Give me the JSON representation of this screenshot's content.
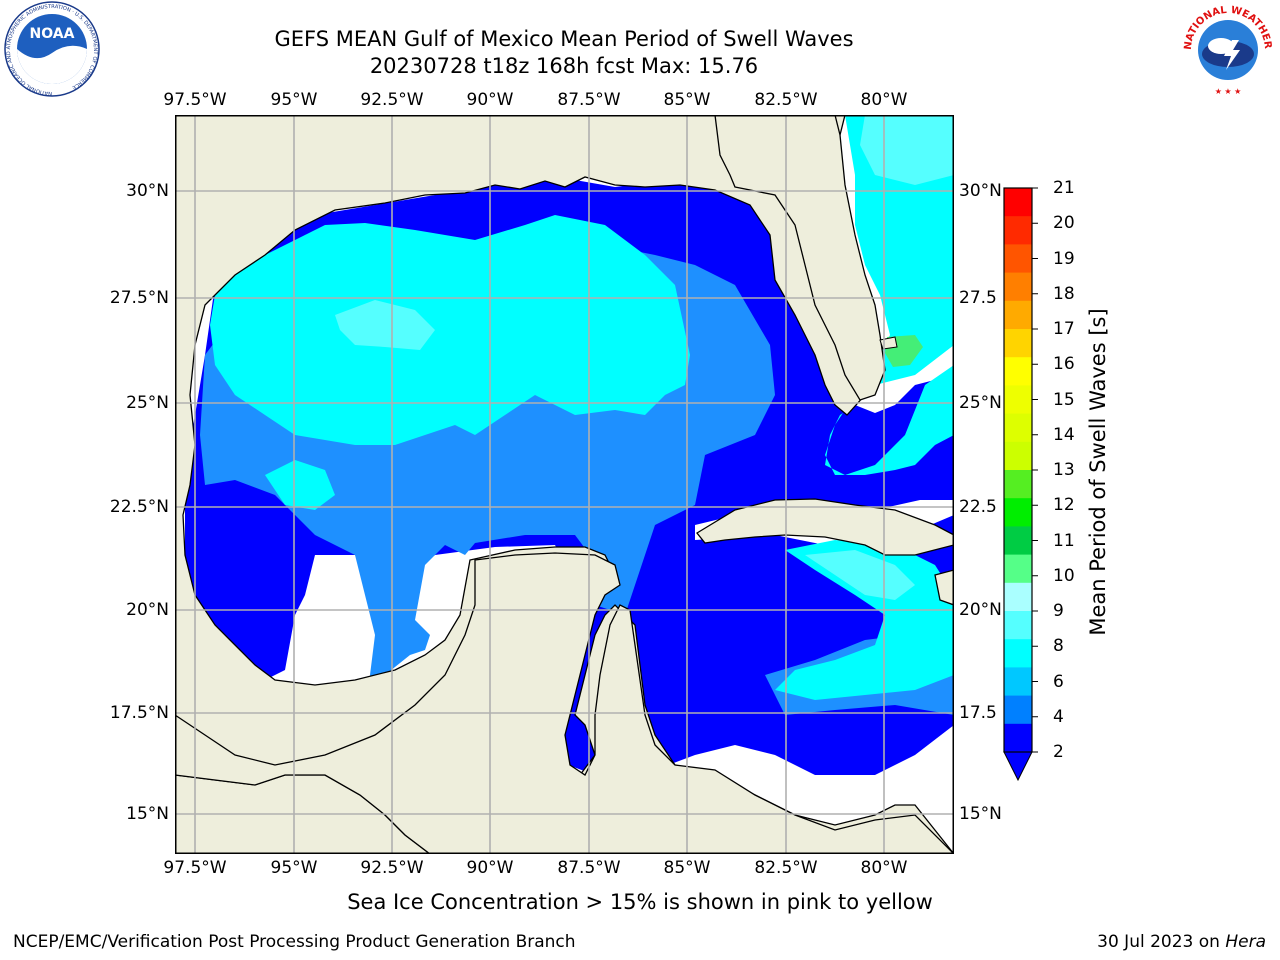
{
  "title": "GEFS MEAN Gulf of Mexico Mean Period of Swell Waves",
  "subtitle": "20230728 t18z 168h fcst   Max: 15.76",
  "axes": {
    "lon_top": [
      "97.5°W",
      "95°W",
      "92.5°W",
      "90°W",
      "87.5°W",
      "85°W",
      "82.5°W",
      "80°W"
    ],
    "lon_bottom": [
      "97.5°W",
      "95°W",
      "92.5°W",
      "90°W",
      "87.5°W",
      "85°W",
      "82.5°W",
      "80°W"
    ],
    "lat_left": [
      "30°N",
      "27.5°N",
      "25°N",
      "22.5°N",
      "20°N",
      "17.5°N",
      "15°N"
    ],
    "lat_right": [
      "30°N",
      "27.5",
      "25°N",
      "22.5",
      "20°N",
      "17.5",
      "15°N"
    ]
  },
  "colorbar": {
    "title": "Mean Period of Swell Waves [s]",
    "labels": [
      "21",
      "20",
      "19",
      "18",
      "17",
      "16",
      "15",
      "14",
      "13",
      "12",
      "11",
      "10",
      "9",
      "8",
      "6",
      "4",
      "2"
    ],
    "colors": [
      "#ff0000",
      "#ff2a00",
      "#ff5500",
      "#ff7f00",
      "#ffaa00",
      "#ffd400",
      "#ffff00",
      "#eeff00",
      "#ddff00",
      "#ccff00",
      "#55ee22",
      "#00ee00",
      "#00cc44",
      "#55ff88",
      "#aaffff",
      "#55ffff",
      "#00ffff",
      "#00c8ff",
      "#0080ff",
      "#0000ff"
    ]
  },
  "colors": {
    "land": "#eeeedc",
    "swell_2_4": "#0000ff",
    "swell_4_6": "#1e90ff",
    "swell_6_8": "#00ffff",
    "swell_8_9": "#55ffff",
    "swell_9_10": "#44ee77",
    "ice_yellow": "#ffff00",
    "ice_green_yellow": "#ddff00",
    "grid": "#b0b0b0"
  },
  "ice_note": "Sea Ice Concentration > 15% is shown in pink to yellow",
  "footer": {
    "left": "NCEP/EMC/Verification Post Processing Product Generation Branch",
    "right_date": "30 Jul 2023 on ",
    "right_machine": "Hera"
  },
  "logos": {
    "noaa": "NOAA",
    "noaa_ring": "NATIONAL OCEANIC AND ATMOSPHERIC ADMINISTRATION · U.S. DEPARTMENT OF COMMERCE",
    "nws_ring": "NATIONAL WEATHER SERVICE"
  }
}
